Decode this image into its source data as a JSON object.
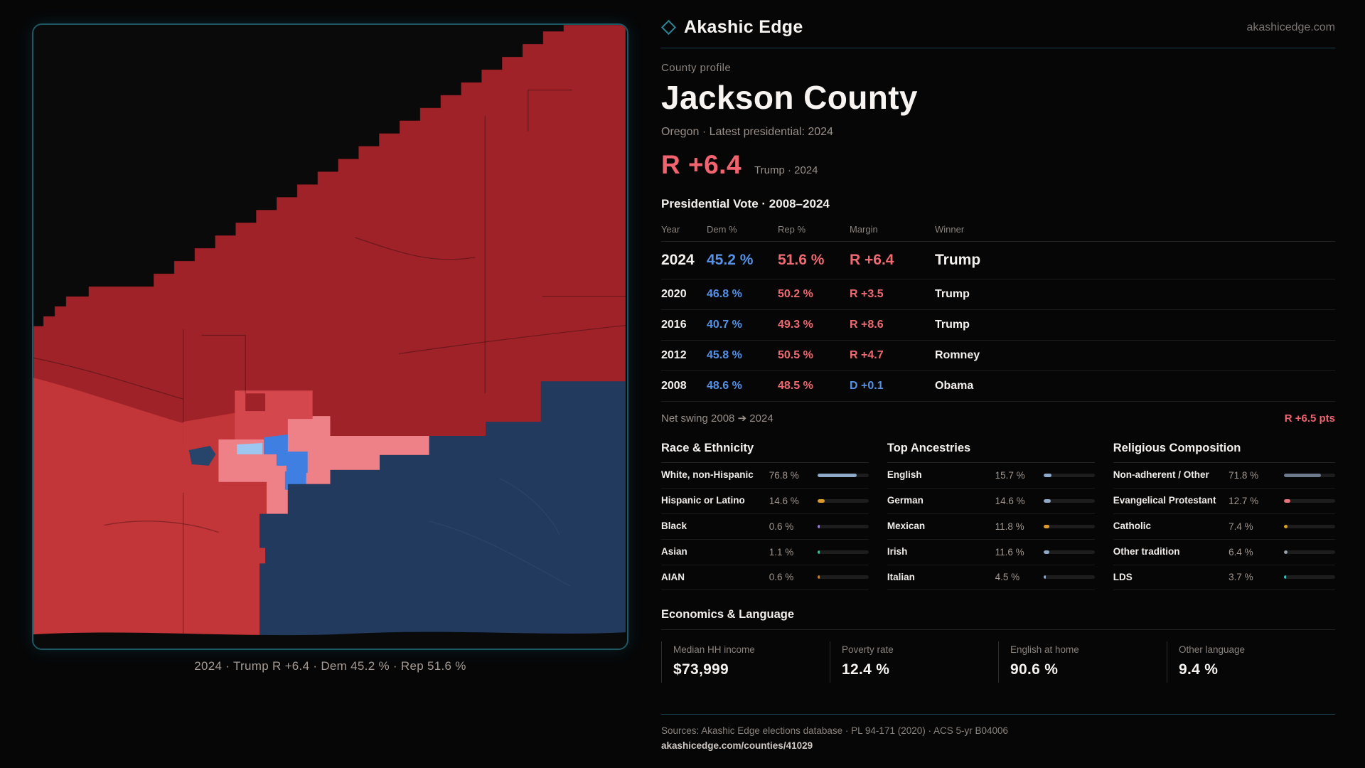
{
  "brand": {
    "name": "Akashic Edge",
    "domain": "akashicedge.com"
  },
  "header": {
    "eyebrow": "County profile",
    "title": "Jackson County",
    "subtitle": "Oregon · Latest presidential: 2024"
  },
  "headline": {
    "margin": "R +6.4",
    "context": "Trump · 2024"
  },
  "vote_table": {
    "title": "Presidential Vote · 2008–2024",
    "columns": {
      "year": "Year",
      "dem": "Dem %",
      "rep": "Rep %",
      "margin": "Margin",
      "winner": "Winner"
    },
    "rows": [
      {
        "year": "2024",
        "dem": "45.2 %",
        "rep": "51.6 %",
        "margin": "R +6.4",
        "margin_color": "#ef6a70",
        "winner": "Trump"
      },
      {
        "year": "2020",
        "dem": "46.8 %",
        "rep": "50.2 %",
        "margin": "R +3.5",
        "margin_color": "#ef6a70",
        "winner": "Trump"
      },
      {
        "year": "2016",
        "dem": "40.7 %",
        "rep": "49.3 %",
        "margin": "R +8.6",
        "margin_color": "#ef6a70",
        "winner": "Trump"
      },
      {
        "year": "2012",
        "dem": "45.8 %",
        "rep": "50.5 %",
        "margin": "R +4.7",
        "margin_color": "#ef6a70",
        "winner": "Romney"
      },
      {
        "year": "2008",
        "dem": "48.6 %",
        "rep": "48.5 %",
        "margin": "D +0.1",
        "margin_color": "#5591e6",
        "winner": "Obama"
      }
    ]
  },
  "net_swing": {
    "label": "Net swing 2008 ➔ 2024",
    "value": "R +6.5 pts"
  },
  "demographics": [
    {
      "title": "Race & Ethnicity",
      "rows": [
        {
          "label": "White, non-Hispanic",
          "value": "76.8 %",
          "pct": 76.8,
          "color": "#8fa9c9"
        },
        {
          "label": "Hispanic or Latino",
          "value": "14.6 %",
          "pct": 14.6,
          "color": "#dd9b2d"
        },
        {
          "label": "Black",
          "value": "0.6 %",
          "pct": 0.6,
          "color": "#9b7fd4"
        },
        {
          "label": "Asian",
          "value": "1.1 %",
          "pct": 1.1,
          "color": "#35bd9a"
        },
        {
          "label": "AIAN",
          "value": "0.6 %",
          "pct": 0.6,
          "color": "#c87f2e"
        }
      ]
    },
    {
      "title": "Top Ancestries",
      "rows": [
        {
          "label": "English",
          "value": "15.7 %",
          "pct": 15.7,
          "color": "#8fa9c9"
        },
        {
          "label": "German",
          "value": "14.6 %",
          "pct": 14.6,
          "color": "#8fa9c9"
        },
        {
          "label": "Mexican",
          "value": "11.8 %",
          "pct": 11.8,
          "color": "#dd9b2d"
        },
        {
          "label": "Irish",
          "value": "11.6 %",
          "pct": 11.6,
          "color": "#8fa9c9"
        },
        {
          "label": "Italian",
          "value": "4.5 %",
          "pct": 4.5,
          "color": "#8fa9c9"
        }
      ]
    },
    {
      "title": "Religious Composition",
      "rows": [
        {
          "label": "Non-adherent / Other",
          "value": "71.8 %",
          "pct": 71.8,
          "color": "#6d7a8e"
        },
        {
          "label": "Evangelical Protestant",
          "value": "12.7 %",
          "pct": 12.7,
          "color": "#e7737b"
        },
        {
          "label": "Catholic",
          "value": "7.4 %",
          "pct": 7.4,
          "color": "#d9a02b"
        },
        {
          "label": "Other tradition",
          "value": "6.4 %",
          "pct": 6.4,
          "color": "#98a0ab"
        },
        {
          "label": "LDS",
          "value": "3.7 %",
          "pct": 3.7,
          "color": "#3ac3c0"
        }
      ]
    }
  ],
  "economics": {
    "title": "Economics & Language",
    "stats": [
      {
        "label": "Median HH income",
        "value": "$73,999"
      },
      {
        "label": "Poverty rate",
        "value": "12.4 %"
      },
      {
        "label": "English at home",
        "value": "90.6 %"
      },
      {
        "label": "Other language",
        "value": "9.4 %"
      }
    ]
  },
  "map": {
    "caption": "2024 · Trump  R +6.4 · Dem 45.2 % · Rep 51.6 %"
  },
  "footer": {
    "sources": "Sources: Akashic Edge elections database · PL 94-171 (2020) · ACS 5-yr B04006",
    "permalink": "akashicedge.com/counties/41029"
  },
  "colors": {
    "accent_teal": "#1e5965",
    "dem_blue": "#5591e6",
    "rep_red": "#ef6a70"
  }
}
